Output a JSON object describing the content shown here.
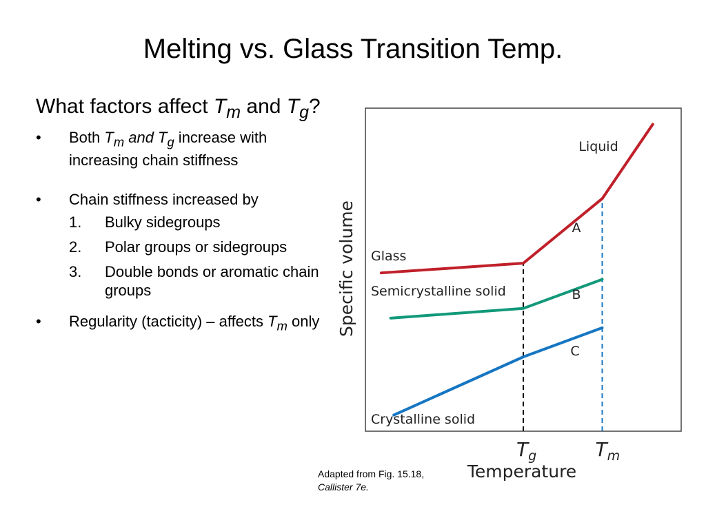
{
  "title": "Melting vs. Glass Transition Temp.",
  "heading": {
    "part1": "What factors affect ",
    "tm": "T",
    "tm_sub": "m",
    "part2": " and ",
    "tg": "T",
    "tg_sub": "g",
    "part3": "?"
  },
  "bullets": {
    "b1": {
      "pre": "Both ",
      "tm": "T",
      "tm_sub": "m",
      "mid": " and T",
      "tg_sub": "g",
      "post": " increase with increasing chain stiffness"
    },
    "b2": "Chain stiffness increased by",
    "sub": [
      {
        "num": "1.",
        "text": "Bulky sidegroups"
      },
      {
        "num": "2.",
        "text": "Polar groups or sidegroups"
      },
      {
        "num": "3.",
        "text": "Double bonds or aromatic chain groups"
      }
    ],
    "b3": {
      "pre": "Regularity (tacticity) – affects ",
      "tm": "T",
      "tm_sub": "m",
      "post": " only"
    }
  },
  "caption": {
    "line1": "Adapted from Fig. 15.18,",
    "line2": "Callister 7e."
  },
  "chart_data": {
    "type": "line",
    "xlabel": "Temperature",
    "ylabel": "Specific volume",
    "x_ticks": [
      {
        "label": "T",
        "sub": "g",
        "x": 0.5
      },
      {
        "label": "T",
        "sub": "m",
        "x": 0.75
      }
    ],
    "series": [
      {
        "name": "Liquid",
        "color": "#c0202a",
        "points": [
          [
            0.75,
            0.72
          ],
          [
            0.91,
            0.95
          ]
        ]
      },
      {
        "name": "Glass",
        "color": "#c0202a",
        "points": [
          [
            0.05,
            0.49
          ],
          [
            0.5,
            0.52
          ],
          [
            0.75,
            0.72
          ]
        ]
      },
      {
        "name": "Semicrystalline solid",
        "color": "#12997a",
        "points": [
          [
            0.08,
            0.35
          ],
          [
            0.5,
            0.38
          ],
          [
            0.75,
            0.47
          ]
        ]
      },
      {
        "name": "Crystalline solid",
        "color": "#1676c2",
        "points": [
          [
            0.09,
            0.05
          ],
          [
            0.5,
            0.23
          ],
          [
            0.75,
            0.32
          ]
        ]
      }
    ],
    "region_labels": [
      "A",
      "B",
      "C"
    ],
    "dashed_lines": [
      {
        "x": 0.5,
        "color": "#000000"
      },
      {
        "x": 0.75,
        "color": "#1676c2"
      }
    ],
    "xlim": [
      0,
      1
    ],
    "ylim": [
      0,
      1
    ]
  }
}
